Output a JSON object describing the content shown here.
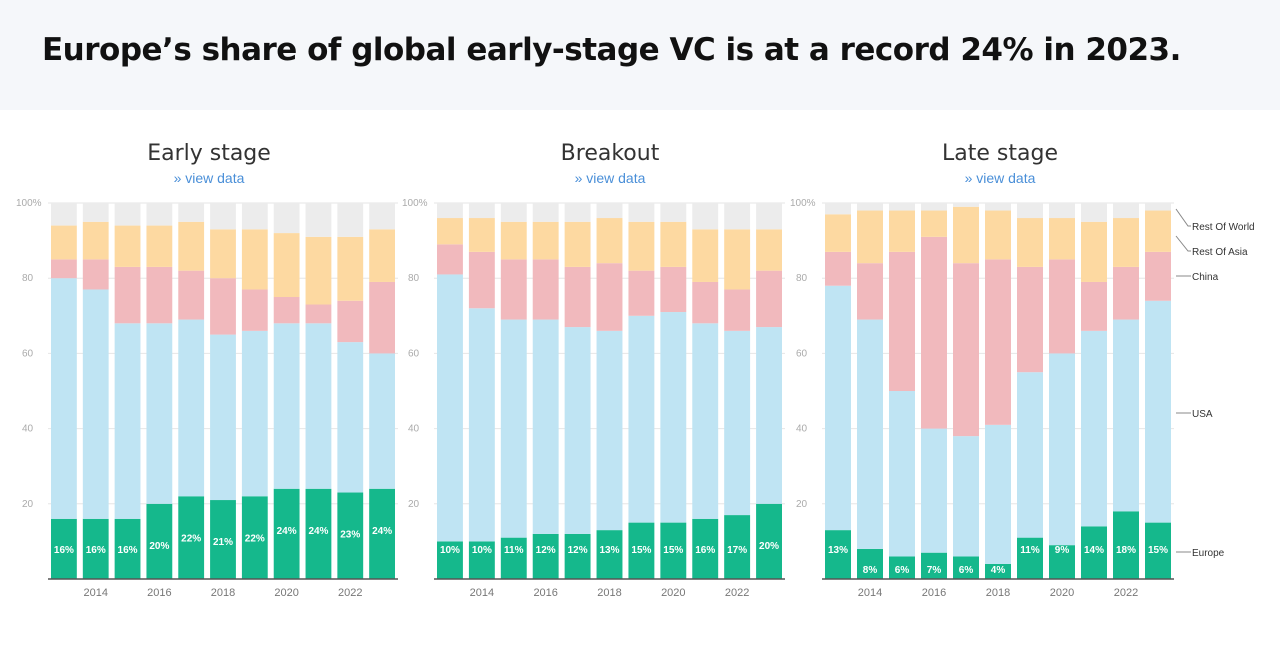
{
  "headline": "Europe’s share of global early-stage VC is at a record 24% in 2023.",
  "view_data_label": "» view data",
  "colors": {
    "europe": "#15b88c",
    "usa": "#bfe4f3",
    "china": "#f1b9bd",
    "rest_of_asia": "#fdd9a1",
    "rest_of_world": "#ececec"
  },
  "chart_data": [
    {
      "type": "bar",
      "stacked": true,
      "title": "Early stage",
      "years": [
        2013,
        2014,
        2015,
        2016,
        2017,
        2018,
        2019,
        2020,
        2021,
        2022,
        2023
      ],
      "xticks": [
        "2014",
        "2016",
        "2018",
        "2020",
        "2022"
      ],
      "yticks": [
        "100%",
        "80",
        "60",
        "40",
        "20"
      ],
      "ylim": [
        0,
        100
      ],
      "series": [
        {
          "name": "Europe",
          "values": [
            16,
            16,
            16,
            20,
            22,
            21,
            22,
            24,
            24,
            23,
            24
          ],
          "labels": [
            "16%",
            "16%",
            "16%",
            "20%",
            "22%",
            "21%",
            "22%",
            "24%",
            "24%",
            "23%",
            "24%"
          ]
        },
        {
          "name": "USA",
          "values": [
            64,
            61,
            52,
            48,
            47,
            44,
            44,
            44,
            44,
            40,
            36
          ]
        },
        {
          "name": "China",
          "values": [
            5,
            8,
            15,
            15,
            13,
            15,
            11,
            7,
            5,
            11,
            19
          ]
        },
        {
          "name": "Rest Of Asia",
          "values": [
            9,
            10,
            11,
            11,
            13,
            13,
            16,
            17,
            18,
            17,
            14
          ]
        },
        {
          "name": "Rest Of World",
          "values": [
            6,
            5,
            6,
            6,
            5,
            7,
            7,
            8,
            9,
            9,
            7
          ]
        }
      ]
    },
    {
      "type": "bar",
      "stacked": true,
      "title": "Breakout",
      "years": [
        2013,
        2014,
        2015,
        2016,
        2017,
        2018,
        2019,
        2020,
        2021,
        2022,
        2023
      ],
      "xticks": [
        "2014",
        "2016",
        "2018",
        "2020",
        "2022"
      ],
      "yticks": [
        "100%",
        "80",
        "60",
        "40",
        "20"
      ],
      "ylim": [
        0,
        100
      ],
      "series": [
        {
          "name": "Europe",
          "values": [
            10,
            10,
            11,
            12,
            12,
            13,
            15,
            15,
            16,
            17,
            20
          ],
          "labels": [
            "10%",
            "10%",
            "11%",
            "12%",
            "12%",
            "13%",
            "15%",
            "15%",
            "16%",
            "17%",
            "20%"
          ]
        },
        {
          "name": "USA",
          "values": [
            71,
            62,
            58,
            57,
            55,
            53,
            55,
            56,
            52,
            49,
            47
          ]
        },
        {
          "name": "China",
          "values": [
            8,
            15,
            16,
            16,
            16,
            18,
            12,
            12,
            11,
            11,
            15
          ]
        },
        {
          "name": "Rest Of Asia",
          "values": [
            7,
            9,
            10,
            10,
            12,
            12,
            13,
            12,
            14,
            16,
            11
          ]
        },
        {
          "name": "Rest Of World",
          "values": [
            4,
            4,
            5,
            5,
            5,
            4,
            5,
            5,
            7,
            7,
            7
          ]
        }
      ]
    },
    {
      "type": "bar",
      "stacked": true,
      "title": "Late stage",
      "years": [
        2013,
        2014,
        2015,
        2016,
        2017,
        2018,
        2019,
        2020,
        2021,
        2022,
        2023
      ],
      "xticks": [
        "2014",
        "2016",
        "2018",
        "2020",
        "2022"
      ],
      "yticks": [
        "100%",
        "80",
        "60",
        "40",
        "20"
      ],
      "ylim": [
        0,
        100
      ],
      "legend": [
        "Rest Of World",
        "Rest Of Asia",
        "China",
        "USA",
        "Europe"
      ],
      "series": [
        {
          "name": "Europe",
          "values": [
            13,
            8,
            6,
            7,
            6,
            4,
            11,
            9,
            14,
            18,
            15
          ],
          "labels": [
            "13%",
            "8%",
            "6%",
            "7%",
            "6%",
            "4%",
            "11%",
            "9%",
            "14%",
            "18%",
            "15%"
          ]
        },
        {
          "name": "USA",
          "values": [
            65,
            61,
            44,
            33,
            32,
            37,
            44,
            51,
            52,
            51,
            59
          ]
        },
        {
          "name": "China",
          "values": [
            9,
            15,
            37,
            51,
            46,
            44,
            28,
            25,
            13,
            14,
            13
          ]
        },
        {
          "name": "Rest Of Asia",
          "values": [
            10,
            14,
            11,
            7,
            15,
            13,
            13,
            11,
            16,
            13,
            11
          ]
        },
        {
          "name": "Rest Of World",
          "values": [
            3,
            2,
            2,
            2,
            1,
            2,
            4,
            4,
            5,
            4,
            2
          ]
        }
      ]
    }
  ]
}
